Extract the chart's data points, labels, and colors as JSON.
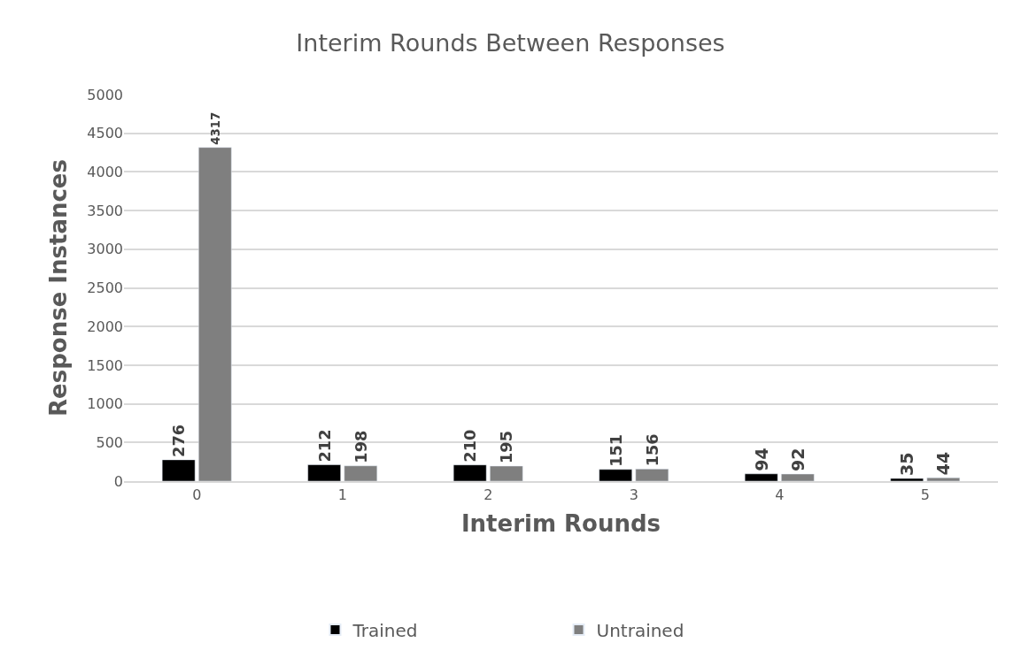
{
  "chart_data": {
    "type": "bar",
    "title": "Interim Rounds Between Responses",
    "xlabel": "Interim Rounds",
    "ylabel": "Response Instances",
    "categories": [
      "0",
      "1",
      "2",
      "3",
      "4",
      "5"
    ],
    "series": [
      {
        "name": "Trained",
        "color": "#000000",
        "values": [
          276,
          212,
          210,
          151,
          94,
          35
        ]
      },
      {
        "name": "Untrained",
        "color": "#7f7f7f",
        "values": [
          4317,
          198,
          195,
          156,
          92,
          44
        ]
      }
    ],
    "ylim": [
      0,
      5000
    ],
    "yticks": [
      0,
      500,
      1000,
      1500,
      2000,
      2500,
      3000,
      3500,
      4000,
      4500,
      5000
    ],
    "grid": "y",
    "legend": "bottom",
    "data_labels": true
  }
}
